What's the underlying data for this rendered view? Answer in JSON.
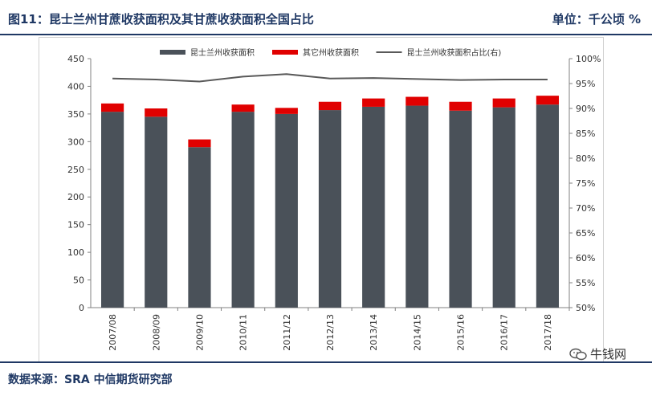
{
  "header": {
    "figure_title": "图11：昆士兰州甘蔗收获面积及其甘蔗收获面积全国占比",
    "unit_label": "单位：千公顷    %"
  },
  "footer": {
    "source": "数据来源：SRA 中信期货研究部",
    "watermark": "牛钱网"
  },
  "colors": {
    "qld_bar": "#4a5159",
    "other_bar": "#e00000",
    "share_line": "#595959",
    "axis": "#808080",
    "title": "#1f3864"
  },
  "chart_data": {
    "type": "bar",
    "stacked": true,
    "categories": [
      "2007/08",
      "2008/09",
      "2009/10",
      "2010/11",
      "2011/12",
      "2012/13",
      "2013/14",
      "2014/15",
      "2015/16",
      "2016/17",
      "2017/18"
    ],
    "series": [
      {
        "name": "昆士兰州收获面积",
        "type": "bar",
        "axis": "left",
        "color": "#4a5159",
        "values": [
          354,
          345,
          290,
          354,
          350,
          357,
          363,
          365,
          356,
          362,
          367
        ]
      },
      {
        "name": "其它州收获面积",
        "type": "bar",
        "axis": "left",
        "color": "#e00000",
        "values": [
          15,
          15,
          14,
          13,
          11,
          15,
          15,
          16,
          16,
          16,
          16
        ]
      },
      {
        "name": "昆士兰州收获面积占比(右)",
        "type": "line",
        "axis": "right",
        "color": "#595959",
        "values": [
          96.0,
          95.8,
          95.4,
          96.4,
          96.9,
          96.0,
          96.1,
          95.9,
          95.7,
          95.8,
          95.8
        ]
      }
    ],
    "y_left": {
      "min": 0,
      "max": 450,
      "ticks": [
        0,
        50,
        100,
        150,
        200,
        250,
        300,
        350,
        400,
        450
      ],
      "tick_labels": [
        "0",
        "50",
        "100",
        "150",
        "200",
        "250",
        "300",
        "350",
        "400",
        "450"
      ]
    },
    "y_right": {
      "min": 50,
      "max": 100,
      "ticks": [
        50,
        55,
        60,
        65,
        70,
        75,
        80,
        85,
        90,
        95,
        100
      ],
      "tick_labels": [
        "50%",
        "55%",
        "60%",
        "65%",
        "70%",
        "75%",
        "80%",
        "85%",
        "90%",
        "95%",
        "100%"
      ]
    },
    "legend_position": "top",
    "grid": false
  }
}
